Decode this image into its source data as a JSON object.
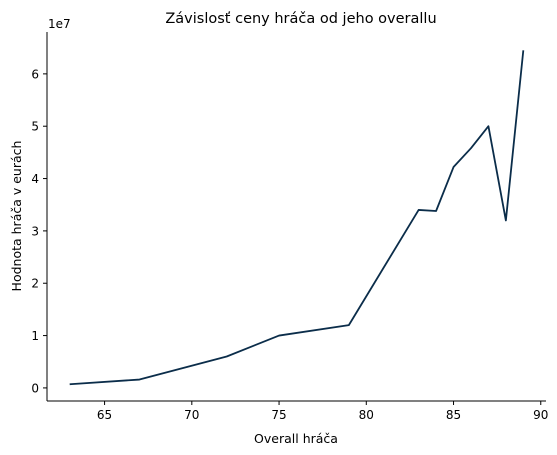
{
  "chart_data": {
    "type": "line",
    "title": "Závislosť ceny hráča od jeho overallu",
    "xlabel": "Overall hráča",
    "ylabel": "Hodnota hráča v eurách",
    "y_offset_label": "1e7",
    "xlim": [
      61.7,
      90.3
    ],
    "ylim": [
      -2500000,
      68000000
    ],
    "x_ticks": [
      65,
      70,
      75,
      80,
      85,
      90
    ],
    "x_tick_labels": [
      "65",
      "70",
      "75",
      "80",
      "85",
      "90"
    ],
    "y_ticks": [
      0,
      10000000,
      20000000,
      30000000,
      40000000,
      50000000,
      60000000
    ],
    "y_tick_labels": [
      "0",
      "1",
      "2",
      "3",
      "4",
      "5",
      "6"
    ],
    "grid": false,
    "series": [
      {
        "color": "#0b2d4a",
        "x": [
          63,
          67,
          72,
          75,
          79,
          83,
          84,
          85,
          86,
          87,
          88,
          89
        ],
        "y": [
          700000,
          1600000,
          6000000,
          10000000,
          12000000,
          34000000,
          33800000,
          42200000,
          45800000,
          50000000,
          32000000,
          64500000
        ]
      }
    ]
  }
}
